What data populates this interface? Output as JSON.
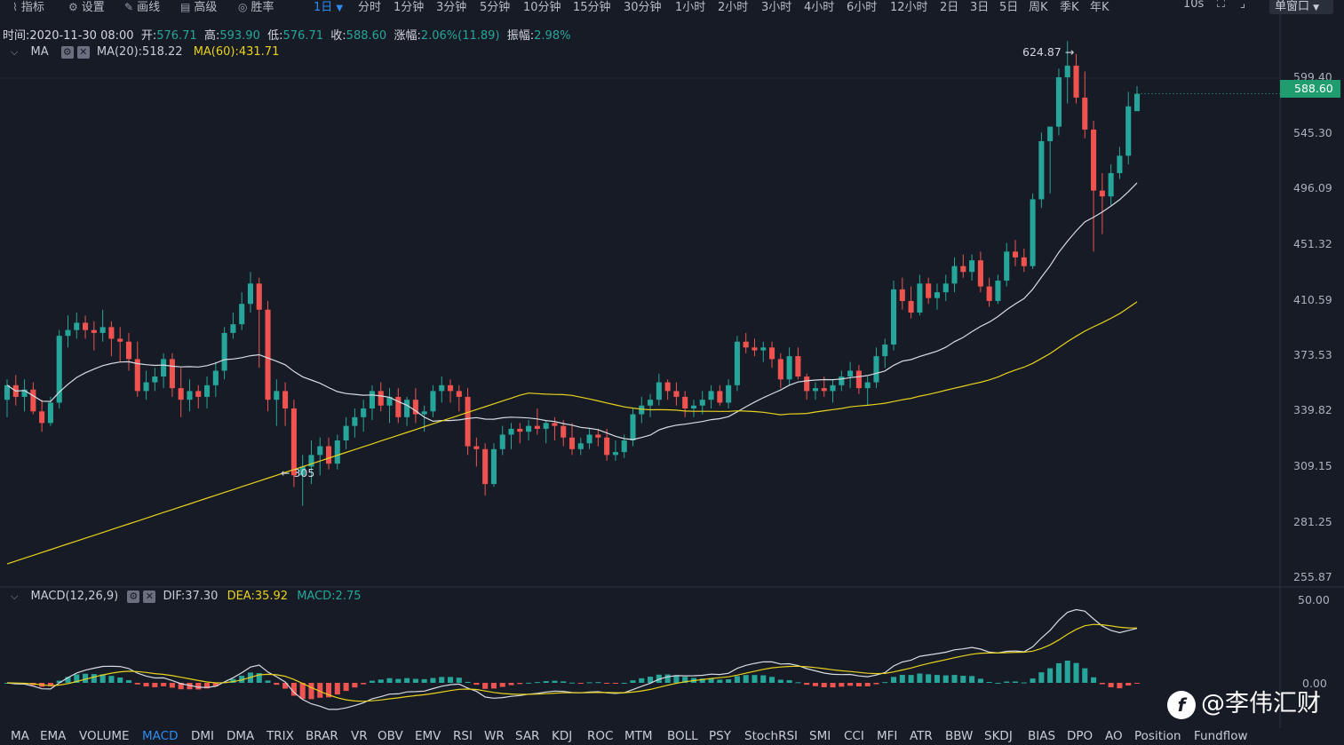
{
  "toolbar": {
    "tools": [
      {
        "label": "指标",
        "icon": "indicator-icon"
      },
      {
        "label": "设置",
        "icon": "gear-icon"
      },
      {
        "label": "画线",
        "icon": "pen-icon"
      },
      {
        "label": "高级",
        "icon": "layout-icon"
      },
      {
        "label": "胜率",
        "icon": "target-icon"
      }
    ],
    "timeframes": [
      "1日",
      "分时",
      "1分钟",
      "3分钟",
      "5分钟",
      "10分钟",
      "15分钟",
      "30分钟",
      "1小时",
      "2小时",
      "3小时",
      "4小时",
      "6小时",
      "12小时",
      "2日",
      "3日",
      "5日",
      "周K",
      "季K",
      "年K"
    ],
    "active_timeframe": "1日",
    "refresh": "10s",
    "window_mode": "单窗口"
  },
  "info": {
    "time_label": "时间:",
    "time": "2020-11-30 08:00",
    "open_label": "开:",
    "open": "576.71",
    "high_label": "高:",
    "high": "593.90",
    "low_label": "低:",
    "low": "576.71",
    "close_label": "收:",
    "close": "588.60",
    "change_label": "涨幅:",
    "change": "2.06%(11.89)",
    "amplitude_label": "振幅:",
    "amplitude": "2.98%"
  },
  "ma_legend": {
    "name": "MA",
    "ma20": "MA(20):518.22",
    "ma60": "MA(60):431.71"
  },
  "price_axis": [
    "599.40",
    "545.30",
    "496.09",
    "451.32",
    "410.59",
    "373.53",
    "339.82",
    "309.15",
    "281.25",
    "255.87"
  ],
  "current_price": "588.60",
  "annotations": {
    "high": "624.87 →",
    "low": "← 305"
  },
  "macd_legend": {
    "name": "MACD(12,26,9)",
    "dif": "DIF:37.30",
    "dea": "DEA:35.92",
    "macd": "MACD:2.75"
  },
  "macd_axis": [
    "50.00",
    "0.00"
  ],
  "indicators": [
    "MA",
    "EMA",
    "VOLUME",
    "MACD",
    "DMI",
    "DMA",
    "TRIX",
    "BRAR",
    "VR",
    "OBV",
    "EMV",
    "RSI",
    "WR",
    "SAR",
    "KDJ",
    "ROC",
    "MTM",
    "BOLL",
    "PSY",
    "StochRSI",
    "SMI",
    "CCI",
    "MFI",
    "ATR",
    "BBW",
    "SKDJ",
    "BIAS",
    "DPO",
    "AO",
    "Position",
    "Fundflow"
  ],
  "active_indicator": "MACD",
  "watermark": "@李伟汇财",
  "colors": {
    "up": "#26a69a",
    "down": "#ef5350",
    "ma20": "#d8dbe2",
    "ma60": "#e8d21d",
    "accent": "#2d8cf0",
    "bg": "#171b26"
  },
  "chart_data": {
    "type": "candlestick",
    "ylim": [
      255.87,
      624.87
    ],
    "candles": [
      {
        "o": 378,
        "h": 392,
        "l": 366,
        "c": 388
      },
      {
        "o": 388,
        "h": 395,
        "l": 374,
        "c": 380
      },
      {
        "o": 380,
        "h": 392,
        "l": 370,
        "c": 385
      },
      {
        "o": 385,
        "h": 390,
        "l": 368,
        "c": 370
      },
      {
        "o": 370,
        "h": 378,
        "l": 356,
        "c": 362
      },
      {
        "o": 362,
        "h": 380,
        "l": 360,
        "c": 376
      },
      {
        "o": 376,
        "h": 426,
        "l": 372,
        "c": 422
      },
      {
        "o": 422,
        "h": 436,
        "l": 414,
        "c": 426
      },
      {
        "o": 426,
        "h": 438,
        "l": 420,
        "c": 431
      },
      {
        "o": 431,
        "h": 436,
        "l": 420,
        "c": 426
      },
      {
        "o": 426,
        "h": 432,
        "l": 412,
        "c": 424
      },
      {
        "o": 424,
        "h": 440,
        "l": 418,
        "c": 428
      },
      {
        "o": 428,
        "h": 432,
        "l": 408,
        "c": 420
      },
      {
        "o": 420,
        "h": 428,
        "l": 404,
        "c": 418
      },
      {
        "o": 418,
        "h": 424,
        "l": 398,
        "c": 406
      },
      {
        "o": 406,
        "h": 418,
        "l": 380,
        "c": 384
      },
      {
        "o": 384,
        "h": 398,
        "l": 378,
        "c": 390
      },
      {
        "o": 390,
        "h": 400,
        "l": 384,
        "c": 394
      },
      {
        "o": 394,
        "h": 410,
        "l": 386,
        "c": 406
      },
      {
        "o": 406,
        "h": 410,
        "l": 380,
        "c": 386
      },
      {
        "o": 386,
        "h": 400,
        "l": 366,
        "c": 378
      },
      {
        "o": 378,
        "h": 392,
        "l": 370,
        "c": 384
      },
      {
        "o": 384,
        "h": 388,
        "l": 372,
        "c": 380
      },
      {
        "o": 380,
        "h": 394,
        "l": 372,
        "c": 388
      },
      {
        "o": 388,
        "h": 404,
        "l": 380,
        "c": 398
      },
      {
        "o": 398,
        "h": 428,
        "l": 392,
        "c": 424
      },
      {
        "o": 424,
        "h": 438,
        "l": 420,
        "c": 430
      },
      {
        "o": 430,
        "h": 452,
        "l": 426,
        "c": 444
      },
      {
        "o": 444,
        "h": 466,
        "l": 438,
        "c": 458
      },
      {
        "o": 458,
        "h": 462,
        "l": 400,
        "c": 440
      },
      {
        "o": 440,
        "h": 446,
        "l": 370,
        "c": 378
      },
      {
        "o": 378,
        "h": 392,
        "l": 360,
        "c": 384
      },
      {
        "o": 384,
        "h": 390,
        "l": 360,
        "c": 372
      },
      {
        "o": 372,
        "h": 378,
        "l": 318,
        "c": 326
      },
      {
        "o": 326,
        "h": 340,
        "l": 305,
        "c": 332
      },
      {
        "o": 332,
        "h": 350,
        "l": 320,
        "c": 340
      },
      {
        "o": 340,
        "h": 352,
        "l": 326,
        "c": 346
      },
      {
        "o": 346,
        "h": 352,
        "l": 330,
        "c": 334
      },
      {
        "o": 334,
        "h": 354,
        "l": 330,
        "c": 350
      },
      {
        "o": 350,
        "h": 366,
        "l": 344,
        "c": 360
      },
      {
        "o": 360,
        "h": 372,
        "l": 352,
        "c": 366
      },
      {
        "o": 366,
        "h": 378,
        "l": 356,
        "c": 372
      },
      {
        "o": 372,
        "h": 388,
        "l": 364,
        "c": 384
      },
      {
        "o": 384,
        "h": 390,
        "l": 370,
        "c": 374
      },
      {
        "o": 374,
        "h": 386,
        "l": 362,
        "c": 380
      },
      {
        "o": 380,
        "h": 386,
        "l": 362,
        "c": 366
      },
      {
        "o": 366,
        "h": 380,
        "l": 360,
        "c": 378
      },
      {
        "o": 378,
        "h": 386,
        "l": 362,
        "c": 368
      },
      {
        "o": 368,
        "h": 374,
        "l": 356,
        "c": 370
      },
      {
        "o": 370,
        "h": 388,
        "l": 366,
        "c": 384
      },
      {
        "o": 384,
        "h": 394,
        "l": 376,
        "c": 388
      },
      {
        "o": 388,
        "h": 392,
        "l": 376,
        "c": 384
      },
      {
        "o": 384,
        "h": 388,
        "l": 370,
        "c": 380
      },
      {
        "o": 380,
        "h": 386,
        "l": 340,
        "c": 346
      },
      {
        "o": 346,
        "h": 352,
        "l": 332,
        "c": 344
      },
      {
        "o": 344,
        "h": 348,
        "l": 312,
        "c": 320
      },
      {
        "o": 320,
        "h": 348,
        "l": 318,
        "c": 344
      },
      {
        "o": 344,
        "h": 360,
        "l": 340,
        "c": 354
      },
      {
        "o": 354,
        "h": 362,
        "l": 344,
        "c": 358
      },
      {
        "o": 358,
        "h": 362,
        "l": 348,
        "c": 356
      },
      {
        "o": 356,
        "h": 364,
        "l": 350,
        "c": 360
      },
      {
        "o": 360,
        "h": 372,
        "l": 354,
        "c": 358
      },
      {
        "o": 358,
        "h": 364,
        "l": 348,
        "c": 362
      },
      {
        "o": 362,
        "h": 366,
        "l": 350,
        "c": 360
      },
      {
        "o": 360,
        "h": 364,
        "l": 346,
        "c": 352
      },
      {
        "o": 352,
        "h": 362,
        "l": 340,
        "c": 344
      },
      {
        "o": 344,
        "h": 352,
        "l": 340,
        "c": 348
      },
      {
        "o": 348,
        "h": 358,
        "l": 344,
        "c": 354
      },
      {
        "o": 354,
        "h": 358,
        "l": 346,
        "c": 352
      },
      {
        "o": 352,
        "h": 358,
        "l": 336,
        "c": 340
      },
      {
        "o": 340,
        "h": 350,
        "l": 336,
        "c": 342
      },
      {
        "o": 342,
        "h": 354,
        "l": 338,
        "c": 350
      },
      {
        "o": 350,
        "h": 372,
        "l": 346,
        "c": 368
      },
      {
        "o": 368,
        "h": 380,
        "l": 362,
        "c": 374
      },
      {
        "o": 374,
        "h": 382,
        "l": 366,
        "c": 378
      },
      {
        "o": 378,
        "h": 396,
        "l": 374,
        "c": 390
      },
      {
        "o": 390,
        "h": 392,
        "l": 378,
        "c": 384
      },
      {
        "o": 384,
        "h": 390,
        "l": 374,
        "c": 380
      },
      {
        "o": 380,
        "h": 384,
        "l": 366,
        "c": 372
      },
      {
        "o": 372,
        "h": 378,
        "l": 366,
        "c": 374
      },
      {
        "o": 374,
        "h": 384,
        "l": 368,
        "c": 378
      },
      {
        "o": 378,
        "h": 388,
        "l": 372,
        "c": 384
      },
      {
        "o": 384,
        "h": 388,
        "l": 374,
        "c": 376
      },
      {
        "o": 376,
        "h": 392,
        "l": 372,
        "c": 388
      },
      {
        "o": 388,
        "h": 422,
        "l": 384,
        "c": 418
      },
      {
        "o": 418,
        "h": 424,
        "l": 410,
        "c": 414
      },
      {
        "o": 414,
        "h": 420,
        "l": 408,
        "c": 412
      },
      {
        "o": 412,
        "h": 418,
        "l": 404,
        "c": 414
      },
      {
        "o": 414,
        "h": 418,
        "l": 400,
        "c": 406
      },
      {
        "o": 406,
        "h": 410,
        "l": 386,
        "c": 392
      },
      {
        "o": 392,
        "h": 414,
        "l": 388,
        "c": 408
      },
      {
        "o": 408,
        "h": 414,
        "l": 392,
        "c": 394
      },
      {
        "o": 394,
        "h": 396,
        "l": 378,
        "c": 384
      },
      {
        "o": 384,
        "h": 390,
        "l": 378,
        "c": 386
      },
      {
        "o": 386,
        "h": 394,
        "l": 380,
        "c": 384
      },
      {
        "o": 384,
        "h": 392,
        "l": 376,
        "c": 388
      },
      {
        "o": 388,
        "h": 398,
        "l": 384,
        "c": 394
      },
      {
        "o": 394,
        "h": 404,
        "l": 386,
        "c": 398
      },
      {
        "o": 398,
        "h": 402,
        "l": 382,
        "c": 386
      },
      {
        "o": 386,
        "h": 394,
        "l": 374,
        "c": 390
      },
      {
        "o": 390,
        "h": 414,
        "l": 386,
        "c": 408
      },
      {
        "o": 408,
        "h": 420,
        "l": 400,
        "c": 416
      },
      {
        "o": 416,
        "h": 460,
        "l": 412,
        "c": 454
      },
      {
        "o": 454,
        "h": 462,
        "l": 440,
        "c": 446
      },
      {
        "o": 446,
        "h": 456,
        "l": 434,
        "c": 438
      },
      {
        "o": 438,
        "h": 464,
        "l": 436,
        "c": 458
      },
      {
        "o": 458,
        "h": 462,
        "l": 444,
        "c": 448
      },
      {
        "o": 448,
        "h": 458,
        "l": 440,
        "c": 452
      },
      {
        "o": 452,
        "h": 464,
        "l": 446,
        "c": 458
      },
      {
        "o": 458,
        "h": 476,
        "l": 452,
        "c": 470
      },
      {
        "o": 470,
        "h": 478,
        "l": 462,
        "c": 466
      },
      {
        "o": 466,
        "h": 478,
        "l": 460,
        "c": 474
      },
      {
        "o": 474,
        "h": 480,
        "l": 452,
        "c": 456
      },
      {
        "o": 456,
        "h": 462,
        "l": 442,
        "c": 446
      },
      {
        "o": 446,
        "h": 464,
        "l": 444,
        "c": 460
      },
      {
        "o": 460,
        "h": 486,
        "l": 456,
        "c": 480
      },
      {
        "o": 480,
        "h": 488,
        "l": 470,
        "c": 476
      },
      {
        "o": 476,
        "h": 482,
        "l": 466,
        "c": 470
      },
      {
        "o": 470,
        "h": 520,
        "l": 468,
        "c": 516
      },
      {
        "o": 516,
        "h": 562,
        "l": 510,
        "c": 556
      },
      {
        "o": 556,
        "h": 566,
        "l": 520,
        "c": 566
      },
      {
        "o": 566,
        "h": 606,
        "l": 560,
        "c": 600
      },
      {
        "o": 600,
        "h": 624.87,
        "l": 582,
        "c": 608
      },
      {
        "o": 608,
        "h": 616,
        "l": 582,
        "c": 586
      },
      {
        "o": 586,
        "h": 604,
        "l": 558,
        "c": 564
      },
      {
        "o": 564,
        "h": 570,
        "l": 480,
        "c": 522
      },
      {
        "o": 522,
        "h": 534,
        "l": 492,
        "c": 518
      },
      {
        "o": 518,
        "h": 540,
        "l": 512,
        "c": 534
      },
      {
        "o": 534,
        "h": 552,
        "l": 530,
        "c": 546
      },
      {
        "o": 546,
        "h": 590,
        "l": 540,
        "c": 580
      },
      {
        "o": 576.71,
        "h": 593.9,
        "l": 576.71,
        "c": 588.6
      }
    ],
    "macd": {
      "ylim": [
        -5,
        50
      ],
      "dif_last": 37.3,
      "dea_last": 35.92,
      "macd_last": 2.75
    }
  }
}
